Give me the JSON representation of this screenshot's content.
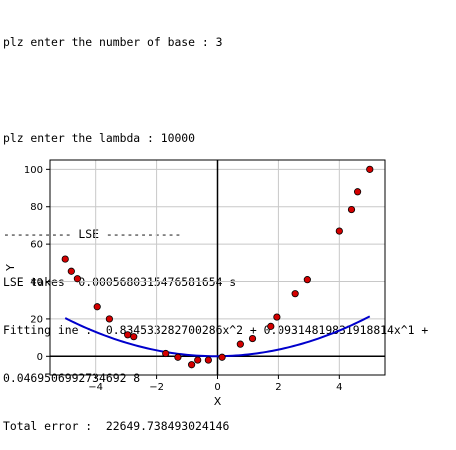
{
  "console": {
    "lines": [
      "plz enter the number of base : 3",
      "",
      "plz enter the lambda : 10000",
      "",
      "---------- LSE -----------",
      "LSE takes  0.0005680315476581654 s",
      "Fitting ine :  0.834533282700286x^2 + 0.09314819831918814x^1 +",
      "0.0469506992734692 8",
      "Total error :  22649.738493024146"
    ]
  },
  "chart_data": {
    "type": "scatter",
    "title": "",
    "xlabel": "X",
    "ylabel": "Y",
    "xlim": [
      -5.5,
      5.5
    ],
    "ylim": [
      -10,
      105
    ],
    "xticks": [
      -4,
      -2,
      0,
      2,
      4
    ],
    "yticks": [
      0,
      20,
      40,
      60,
      80,
      100
    ],
    "grid": true,
    "axis_lines_through_origin": true,
    "points": {
      "name": "data",
      "color": "#d40000",
      "x": [
        -5.0,
        -4.8,
        -4.6,
        -3.95,
        -3.55,
        -2.95,
        -2.75,
        -1.7,
        -1.3,
        -0.85,
        -0.65,
        -0.3,
        0.15,
        0.75,
        1.15,
        1.75,
        1.95,
        2.55,
        2.95,
        4.0,
        4.4,
        4.6,
        5.0
      ],
      "y": [
        52,
        45.5,
        41.5,
        26.5,
        20,
        11.5,
        10.5,
        1.5,
        -0.5,
        -4.5,
        -2,
        -2,
        -0.5,
        6.5,
        9.5,
        16,
        21,
        33.5,
        41,
        67,
        78.5,
        88,
        100
      ]
    },
    "fit_line": {
      "name": "fit",
      "color": "#0000cc",
      "coefficients": [
        0.834533282700286,
        0.09314819831918814,
        0.0469506992734692
      ],
      "x_range": [
        -5.0,
        5.0
      ]
    }
  }
}
